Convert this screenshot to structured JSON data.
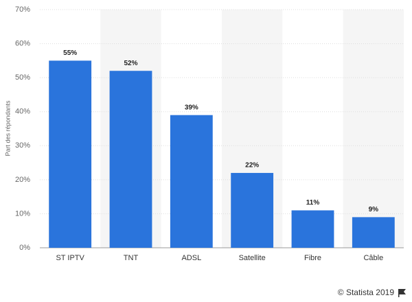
{
  "chart_data": {
    "type": "bar",
    "y_label": "Part des répondants",
    "categories": [
      "ST IPTV",
      "TNT",
      "ADSL",
      "Satellite",
      "Fibre",
      "Câble"
    ],
    "values": [
      55,
      52,
      39,
      22,
      11,
      9
    ],
    "value_labels": [
      "55%",
      "52%",
      "39%",
      "22%",
      "11%",
      "9%"
    ],
    "color": "#2a74dc",
    "ylim": [
      0,
      70
    ],
    "yticks": [
      {
        "value": 0,
        "label": "0%"
      },
      {
        "value": 10,
        "label": "10%"
      },
      {
        "value": 20,
        "label": "20%"
      },
      {
        "value": 30,
        "label": "30%"
      },
      {
        "value": 40,
        "label": "40%"
      },
      {
        "value": 50,
        "label": "50%"
      },
      {
        "value": 60,
        "label": "60%"
      },
      {
        "value": 70,
        "label": "70%"
      }
    ],
    "grid": true,
    "credit": "© Statista 2019"
  }
}
